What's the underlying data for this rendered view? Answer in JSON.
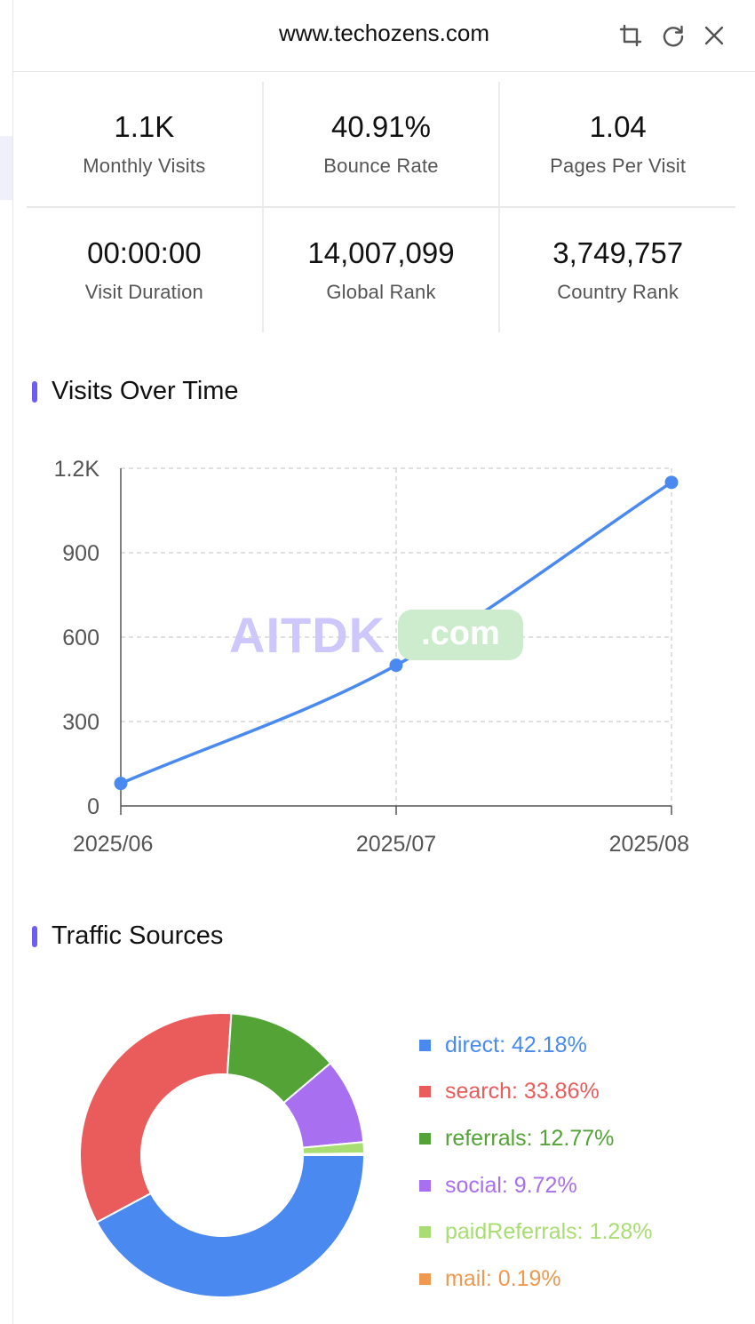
{
  "header": {
    "url": "www.techozens.com"
  },
  "stats": [
    {
      "value": "1.1K",
      "label": "Monthly Visits"
    },
    {
      "value": "40.91%",
      "label": "Bounce Rate"
    },
    {
      "value": "1.04",
      "label": "Pages Per Visit"
    },
    {
      "value": "00:00:00",
      "label": "Visit Duration"
    },
    {
      "value": "14,007,099",
      "label": "Global Rank"
    },
    {
      "value": "3,749,757",
      "label": "Country Rank"
    }
  ],
  "sections": {
    "visits_title": "Visits Over Time",
    "traffic_title": "Traffic Sources"
  },
  "watermark": {
    "brand": "AITDK",
    "tld": ".com"
  },
  "chart_data": [
    {
      "type": "line",
      "x": [
        "2025/06",
        "2025/07",
        "2025/08"
      ],
      "series": [
        {
          "values": [
            80,
            500,
            1150
          ],
          "color": "#4a8af0"
        }
      ],
      "ylim": [
        0,
        1200
      ],
      "yticks": [
        "0",
        "300",
        "600",
        "900",
        "1.2K"
      ],
      "grid": true
    },
    {
      "type": "pie",
      "donut": true,
      "slices": [
        {
          "label": "direct",
          "value": 42.18,
          "text": "direct: 42.18%",
          "color": "#4a8af0"
        },
        {
          "label": "search",
          "value": 33.86,
          "text": "search: 33.86%",
          "color": "#ea5b5b"
        },
        {
          "label": "referrals",
          "value": 12.77,
          "text": "referrals: 12.77%",
          "color": "#53a336"
        },
        {
          "label": "social",
          "value": 9.72,
          "text": "social: 9.72%",
          "color": "#a86ff0"
        },
        {
          "label": "paidReferrals",
          "value": 1.28,
          "text": "paidReferrals: 1.28%",
          "color": "#a7dd72"
        },
        {
          "label": "mail",
          "value": 0.19,
          "text": "mail: 0.19%",
          "color": "#ef9950"
        }
      ]
    }
  ]
}
